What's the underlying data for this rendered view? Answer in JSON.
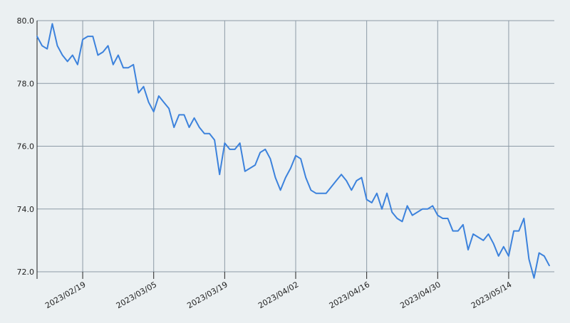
{
  "chart_data": {
    "type": "line",
    "title": "",
    "xlabel": "",
    "ylabel": "",
    "ylim": [
      72.0,
      80.0
    ],
    "xlim": [
      "2023-02-10",
      "2023-05-23"
    ],
    "grid": true,
    "legend": "none",
    "colors": {
      "background": "#ebf0f2",
      "grid": "#8c9aa6",
      "line": "#3c82dc",
      "axis": "#222222"
    },
    "y_ticks": [
      {
        "value": 72.0,
        "label": "72.0"
      },
      {
        "value": 74.0,
        "label": "74.0"
      },
      {
        "value": 76.0,
        "label": "76.0"
      },
      {
        "value": 78.0,
        "label": "78.0"
      },
      {
        "value": 80.0,
        "label": "80.0"
      }
    ],
    "x_ticks": [
      {
        "value": "2023-02-19",
        "label": "2023/02/19"
      },
      {
        "value": "2023-03-05",
        "label": "2023/03/05"
      },
      {
        "value": "2023-03-19",
        "label": "2023/03/19"
      },
      {
        "value": "2023-04-02",
        "label": "2023/04/02"
      },
      {
        "value": "2023-04-16",
        "label": "2023/04/16"
      },
      {
        "value": "2023-04-30",
        "label": "2023/04/30"
      },
      {
        "value": "2023-05-14",
        "label": "2023/05/14"
      }
    ],
    "series": [
      {
        "points": [
          {
            "x": "2023-02-10",
            "y": 79.5
          },
          {
            "x": "2023-02-11",
            "y": 79.2
          },
          {
            "x": "2023-02-12",
            "y": 79.1
          },
          {
            "x": "2023-02-13",
            "y": 79.9
          },
          {
            "x": "2023-02-14",
            "y": 79.2
          },
          {
            "x": "2023-02-15",
            "y": 78.9
          },
          {
            "x": "2023-02-16",
            "y": 78.7
          },
          {
            "x": "2023-02-17",
            "y": 78.9
          },
          {
            "x": "2023-02-18",
            "y": 78.6
          },
          {
            "x": "2023-02-19",
            "y": 79.4
          },
          {
            "x": "2023-02-20",
            "y": 79.5
          },
          {
            "x": "2023-02-21",
            "y": 79.5
          },
          {
            "x": "2023-02-22",
            "y": 78.9
          },
          {
            "x": "2023-02-23",
            "y": 79.0
          },
          {
            "x": "2023-02-24",
            "y": 79.2
          },
          {
            "x": "2023-02-25",
            "y": 78.6
          },
          {
            "x": "2023-02-26",
            "y": 78.9
          },
          {
            "x": "2023-02-27",
            "y": 78.5
          },
          {
            "x": "2023-02-28",
            "y": 78.5
          },
          {
            "x": "2023-03-01",
            "y": 78.6
          },
          {
            "x": "2023-03-02",
            "y": 77.7
          },
          {
            "x": "2023-03-03",
            "y": 77.9
          },
          {
            "x": "2023-03-04",
            "y": 77.4
          },
          {
            "x": "2023-03-05",
            "y": 77.1
          },
          {
            "x": "2023-03-06",
            "y": 77.6
          },
          {
            "x": "2023-03-07",
            "y": 77.4
          },
          {
            "x": "2023-03-08",
            "y": 77.2
          },
          {
            "x": "2023-03-09",
            "y": 76.6
          },
          {
            "x": "2023-03-10",
            "y": 77.0
          },
          {
            "x": "2023-03-11",
            "y": 77.0
          },
          {
            "x": "2023-03-12",
            "y": 76.6
          },
          {
            "x": "2023-03-13",
            "y": 76.9
          },
          {
            "x": "2023-03-14",
            "y": 76.6
          },
          {
            "x": "2023-03-15",
            "y": 76.4
          },
          {
            "x": "2023-03-16",
            "y": 76.4
          },
          {
            "x": "2023-03-17",
            "y": 76.2
          },
          {
            "x": "2023-03-18",
            "y": 75.1
          },
          {
            "x": "2023-03-19",
            "y": 76.1
          },
          {
            "x": "2023-03-20",
            "y": 75.9
          },
          {
            "x": "2023-03-21",
            "y": 75.9
          },
          {
            "x": "2023-03-22",
            "y": 76.1
          },
          {
            "x": "2023-03-23",
            "y": 75.2
          },
          {
            "x": "2023-03-25",
            "y": 75.4
          },
          {
            "x": "2023-03-26",
            "y": 75.8
          },
          {
            "x": "2023-03-27",
            "y": 75.9
          },
          {
            "x": "2023-03-28",
            "y": 75.6
          },
          {
            "x": "2023-03-29",
            "y": 75.0
          },
          {
            "x": "2023-03-30",
            "y": 74.6
          },
          {
            "x": "2023-03-31",
            "y": 75.0
          },
          {
            "x": "2023-04-01",
            "y": 75.3
          },
          {
            "x": "2023-04-02",
            "y": 75.7
          },
          {
            "x": "2023-04-03",
            "y": 75.6
          },
          {
            "x": "2023-04-04",
            "y": 75.0
          },
          {
            "x": "2023-04-05",
            "y": 74.6
          },
          {
            "x": "2023-04-06",
            "y": 74.5
          },
          {
            "x": "2023-04-08",
            "y": 74.5
          },
          {
            "x": "2023-04-10",
            "y": 74.9
          },
          {
            "x": "2023-04-11",
            "y": 75.1
          },
          {
            "x": "2023-04-12",
            "y": 74.9
          },
          {
            "x": "2023-04-13",
            "y": 74.6
          },
          {
            "x": "2023-04-14",
            "y": 74.9
          },
          {
            "x": "2023-04-15",
            "y": 75.0
          },
          {
            "x": "2023-04-16",
            "y": 74.3
          },
          {
            "x": "2023-04-17",
            "y": 74.2
          },
          {
            "x": "2023-04-18",
            "y": 74.5
          },
          {
            "x": "2023-04-19",
            "y": 74.0
          },
          {
            "x": "2023-04-20",
            "y": 74.5
          },
          {
            "x": "2023-04-21",
            "y": 73.9
          },
          {
            "x": "2023-04-22",
            "y": 73.7
          },
          {
            "x": "2023-04-23",
            "y": 73.6
          },
          {
            "x": "2023-04-24",
            "y": 74.1
          },
          {
            "x": "2023-04-25",
            "y": 73.8
          },
          {
            "x": "2023-04-27",
            "y": 74.0
          },
          {
            "x": "2023-04-28",
            "y": 74.0
          },
          {
            "x": "2023-04-29",
            "y": 74.1
          },
          {
            "x": "2023-04-30",
            "y": 73.8
          },
          {
            "x": "2023-05-01",
            "y": 73.7
          },
          {
            "x": "2023-05-02",
            "y": 73.7
          },
          {
            "x": "2023-05-03",
            "y": 73.3
          },
          {
            "x": "2023-05-04",
            "y": 73.3
          },
          {
            "x": "2023-05-05",
            "y": 73.5
          },
          {
            "x": "2023-05-06",
            "y": 72.7
          },
          {
            "x": "2023-05-07",
            "y": 73.2
          },
          {
            "x": "2023-05-09",
            "y": 73.0
          },
          {
            "x": "2023-05-10",
            "y": 73.2
          },
          {
            "x": "2023-05-11",
            "y": 72.9
          },
          {
            "x": "2023-05-12",
            "y": 72.5
          },
          {
            "x": "2023-05-13",
            "y": 72.8
          },
          {
            "x": "2023-05-14",
            "y": 72.5
          },
          {
            "x": "2023-05-15",
            "y": 73.3
          },
          {
            "x": "2023-05-16",
            "y": 73.3
          },
          {
            "x": "2023-05-17",
            "y": 73.7
          },
          {
            "x": "2023-05-18",
            "y": 72.4
          },
          {
            "x": "2023-05-19",
            "y": 71.8
          },
          {
            "x": "2023-05-20",
            "y": 72.6
          },
          {
            "x": "2023-05-21",
            "y": 72.5
          },
          {
            "x": "2023-05-22",
            "y": 72.2
          }
        ]
      }
    ]
  }
}
